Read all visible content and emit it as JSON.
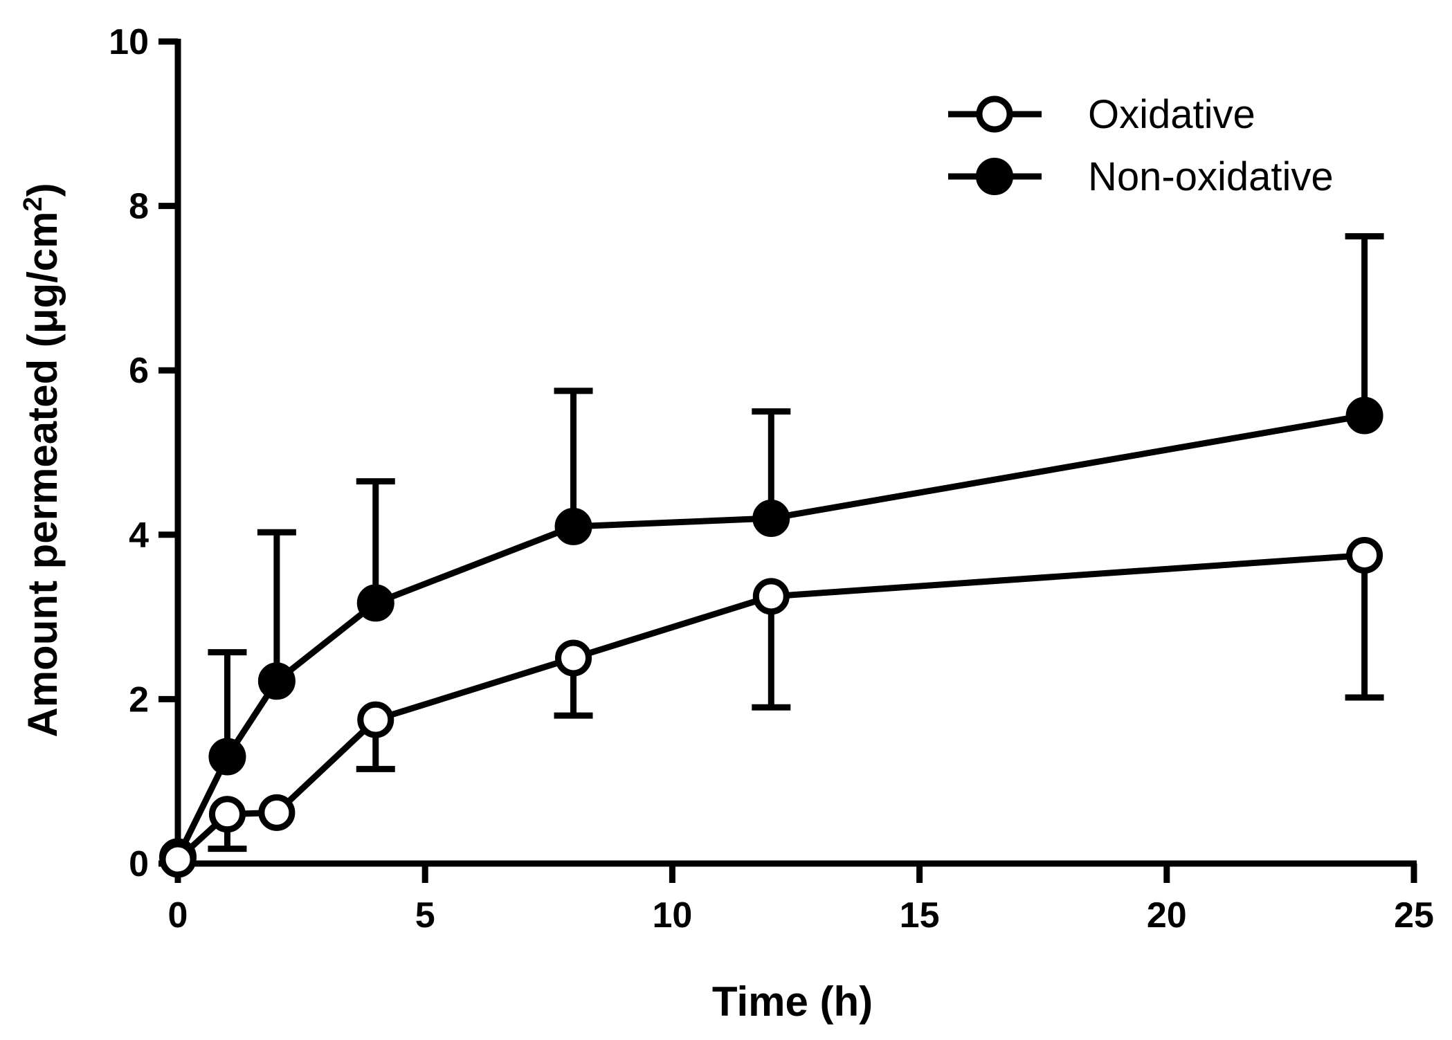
{
  "chart_data": {
    "type": "line",
    "xlabel": "Time (h)",
    "ylabel": "Amount permeated (μg/cm²)",
    "ylabel_main": "Amount permeated (μg/cm",
    "ylabel_sup": "2",
    "ylabel_close": ")",
    "xlim": [
      0,
      25
    ],
    "ylim": [
      0,
      10
    ],
    "xticks": [
      0,
      5,
      10,
      15,
      20,
      25
    ],
    "yticks": [
      0,
      2,
      4,
      6,
      8,
      10
    ],
    "xtick_labels": [
      "0",
      "5",
      "10",
      "15",
      "20",
      "25"
    ],
    "ytick_labels": [
      "0",
      "2",
      "4",
      "6",
      "8",
      "10"
    ],
    "grid": false,
    "legend_position": "top-right",
    "color": "#000000",
    "series": [
      {
        "name": "Oxidative",
        "marker": "open-circle",
        "x": [
          0,
          1,
          2,
          4,
          8,
          12,
          24
        ],
        "y": [
          0.05,
          0.6,
          0.62,
          1.75,
          2.5,
          3.25,
          3.75
        ],
        "error_bars": [
          {
            "x": 1,
            "low": 0.18,
            "high": null
          },
          {
            "x": 4,
            "low": 1.15,
            "high": null
          },
          {
            "x": 8,
            "low": 1.8,
            "high": null
          },
          {
            "x": 12,
            "low": 1.9,
            "high": null
          },
          {
            "x": 24,
            "low": 2.02,
            "high": null
          }
        ]
      },
      {
        "name": "Non-oxidative",
        "marker": "filled-circle",
        "x": [
          0,
          1,
          2,
          4,
          8,
          12,
          24
        ],
        "y": [
          0.08,
          1.3,
          2.22,
          3.17,
          4.1,
          4.2,
          5.45
        ],
        "error_bars": [
          {
            "x": 1,
            "low": null,
            "high": 2.57
          },
          {
            "x": 2,
            "low": null,
            "high": 4.03
          },
          {
            "x": 4,
            "low": null,
            "high": 4.65
          },
          {
            "x": 8,
            "low": null,
            "high": 5.75
          },
          {
            "x": 12,
            "low": null,
            "high": 5.5
          },
          {
            "x": 24,
            "low": null,
            "high": 7.63
          }
        ]
      }
    ]
  }
}
